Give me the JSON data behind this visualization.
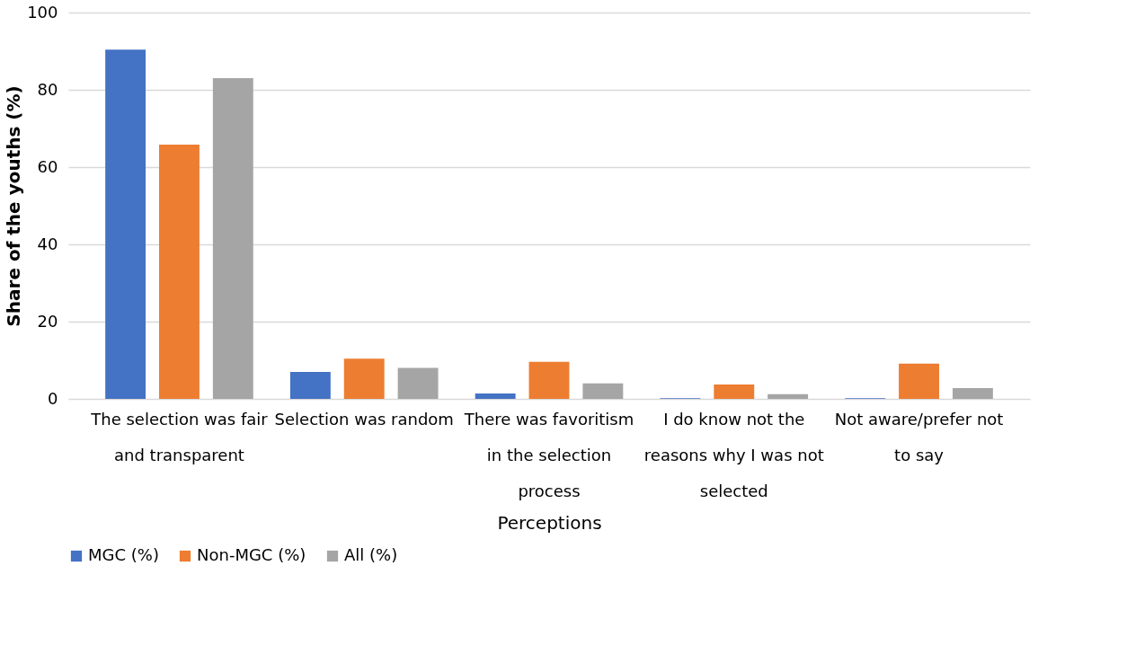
{
  "chart_data": {
    "type": "bar",
    "xlabel": "Perceptions",
    "ylabel": "Share of the youths (%)",
    "categories": [
      "The selection was fair and transparent",
      "Selection was random",
      "There was favoritism in the selection process",
      "I do know not the reasons why I was not selected",
      "Not aware/prefer not to say"
    ],
    "series": [
      {
        "name": "MGC (%)",
        "color": "#4472c4",
        "values": [
          90.4,
          7.0,
          1.4,
          0.2,
          0.2
        ]
      },
      {
        "name": "Non-MGC (%)",
        "color": "#ed7d31",
        "values": [
          65.8,
          10.4,
          9.6,
          3.7,
          9.1
        ]
      },
      {
        "name": "All (%)",
        "color": "#a5a5a5",
        "values": [
          83.0,
          8.0,
          4.0,
          1.2,
          2.8
        ]
      }
    ],
    "ylim": [
      0,
      100
    ],
    "yticks": [
      0,
      20,
      40,
      60,
      80,
      100
    ],
    "grid": "y",
    "legend": "bottom"
  }
}
